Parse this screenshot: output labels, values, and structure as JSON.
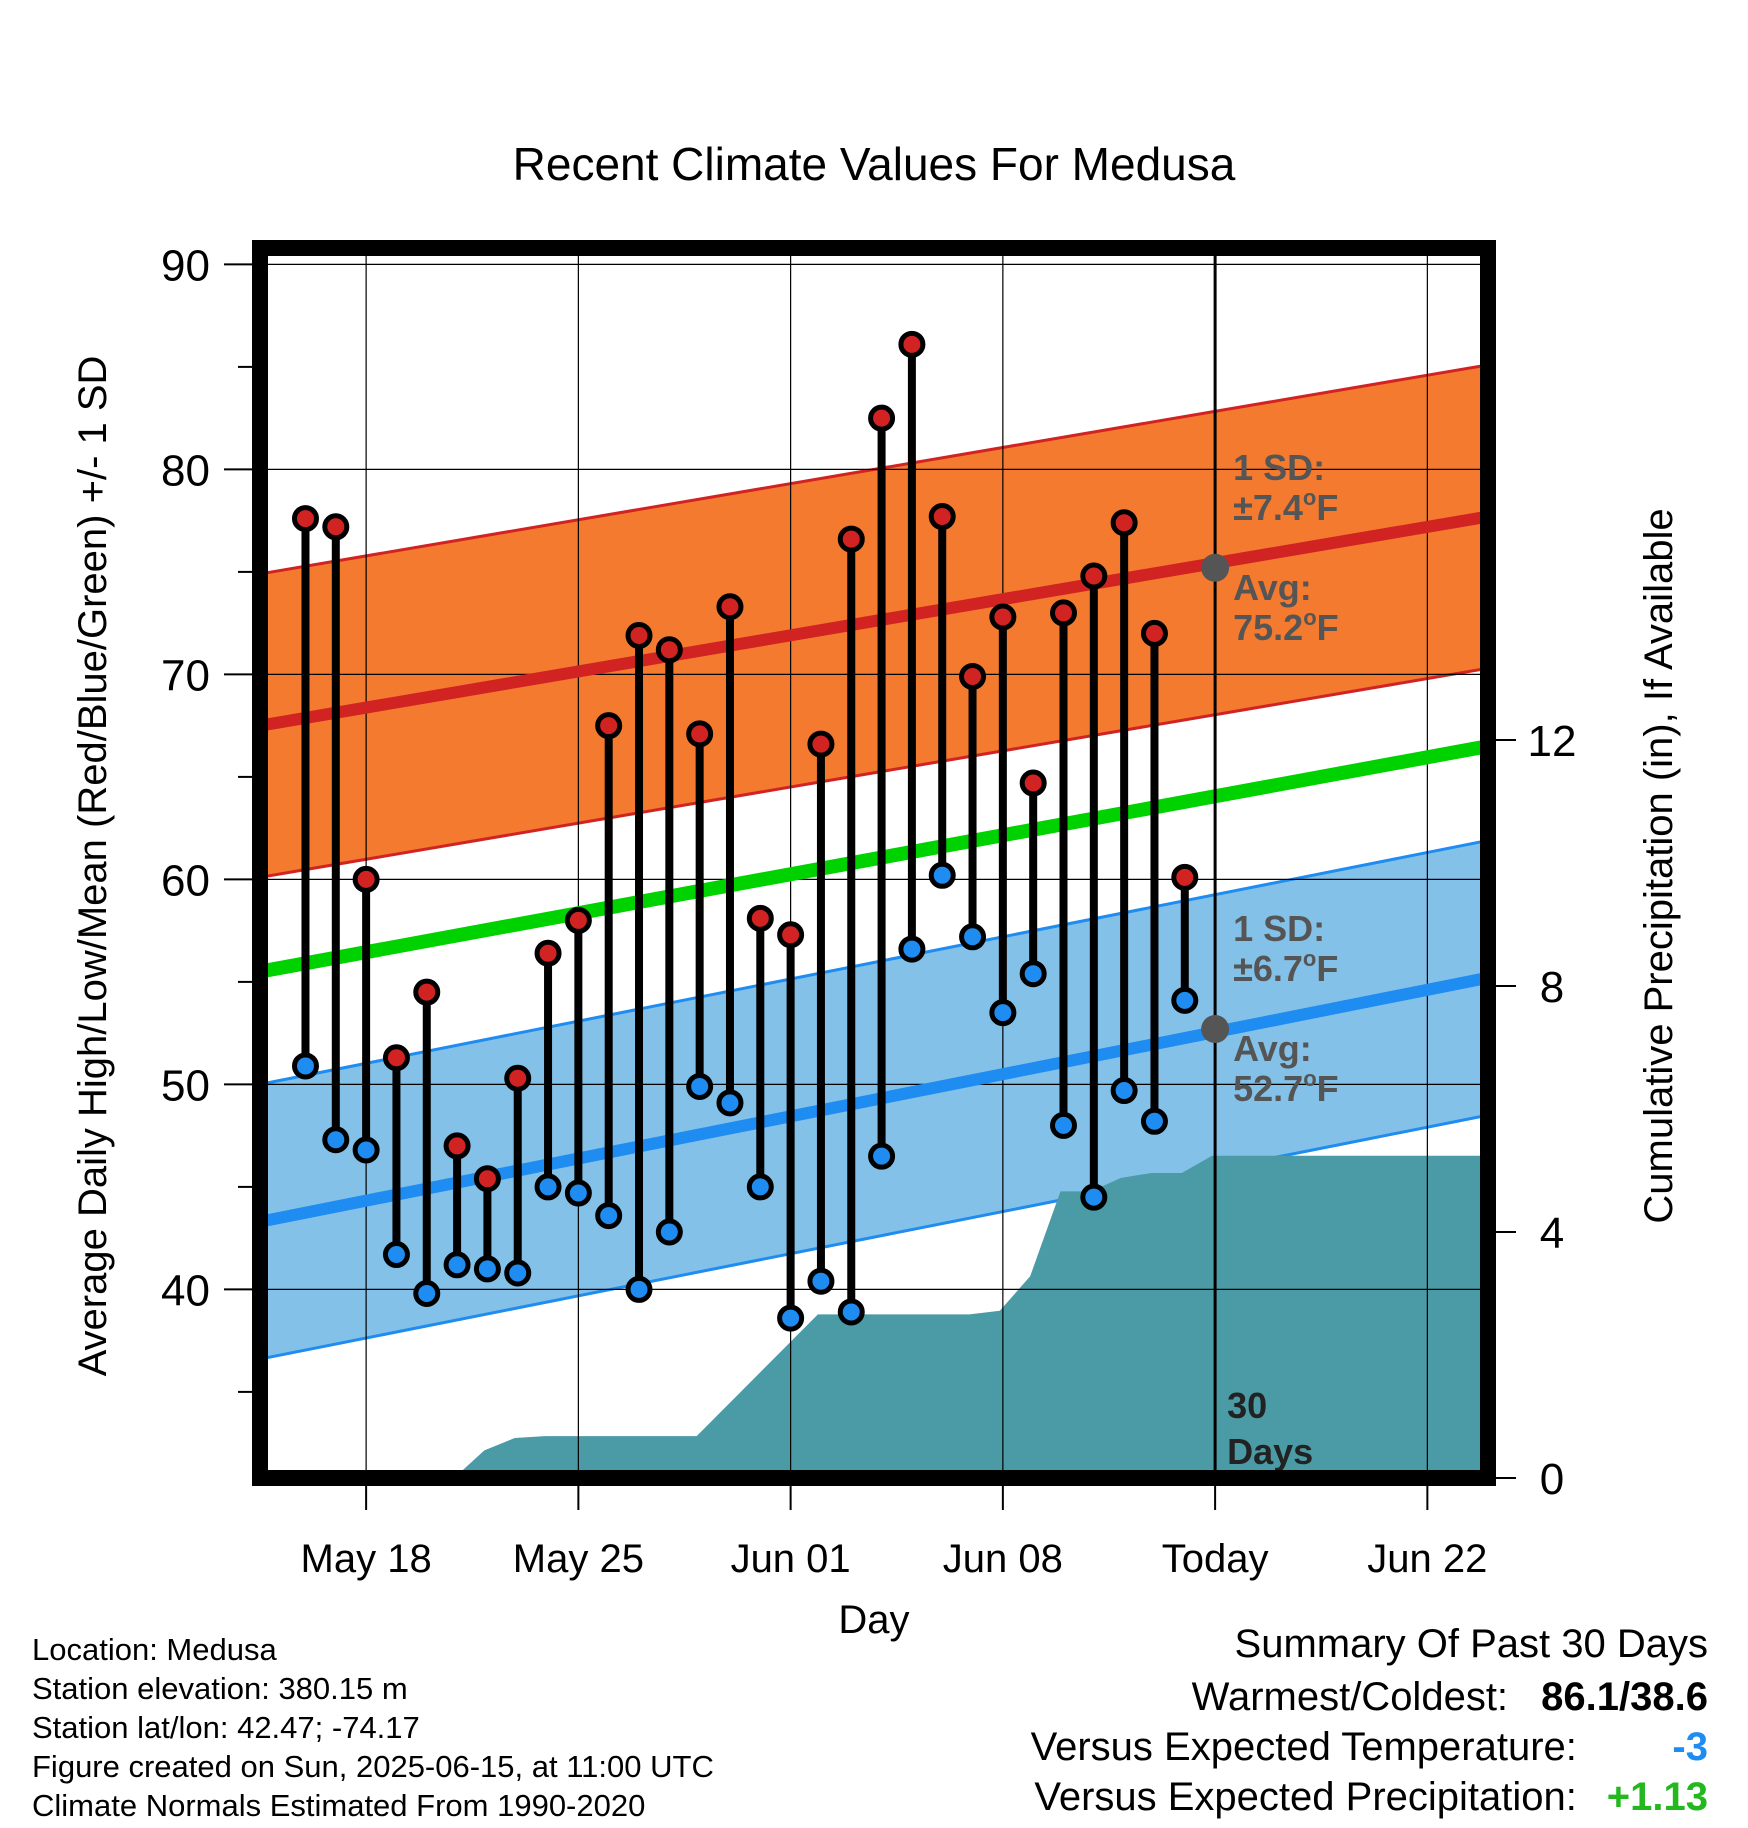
{
  "chart_data": {
    "type": "line",
    "title": "Recent Climate Values For Medusa",
    "xlabel": "Day",
    "ylabel": "Average Daily High/Low/Mean (Red/Blue/Green) +/- 1 SD",
    "ylabel_right": "Cumulative Precipitation (in), If Available",
    "x_day_range": [
      -3.5,
      37.0
    ],
    "x_tick_days": [
      0,
      7,
      14,
      21,
      28,
      35
    ],
    "x_tick_labels": [
      "May 18",
      "May 25",
      "Jun 01",
      "Jun 08",
      "Today",
      "Jun 22"
    ],
    "ylim": [
      30.8,
      90.8
    ],
    "y_ticks": [
      40,
      50,
      60,
      70,
      80,
      90
    ],
    "y2lim": [
      0,
      20
    ],
    "y2_ticks": [
      0,
      4,
      8,
      12
    ],
    "grid": true,
    "today_day": 28,
    "today_label": "30 Days",
    "normal_high": {
      "start": 67.5,
      "end": 77.7,
      "sd": 7.4
    },
    "normal_low": {
      "start": 43.3,
      "end": 55.2,
      "sd": 6.7
    },
    "normal_mean": {
      "start": 55.5,
      "end": 66.5
    },
    "highs": [
      77.6,
      77.2,
      60.0,
      51.3,
      54.5,
      47.0,
      45.4,
      50.3,
      56.4,
      58.0,
      67.5,
      71.9,
      71.2,
      67.1,
      73.3,
      58.1,
      57.3,
      66.6,
      76.6,
      82.5,
      86.1,
      77.7,
      69.9,
      72.8,
      64.7,
      73.0,
      74.8,
      77.4,
      72.0,
      60.1
    ],
    "lows": [
      50.9,
      47.3,
      46.8,
      41.7,
      39.8,
      41.2,
      41.0,
      40.8,
      45.0,
      44.7,
      43.6,
      40.0,
      42.8,
      49.9,
      49.1,
      45.0,
      38.6,
      40.4,
      38.9,
      46.5,
      56.6,
      60.2,
      57.2,
      53.5,
      55.4,
      48.0,
      44.5,
      49.7,
      48.2,
      54.1
    ],
    "precip_days": [
      -2.3,
      2.9,
      3.9,
      4.9,
      5.9,
      9.9,
      10.9,
      14.9,
      15.9,
      16.9,
      17.9,
      18.9,
      19.9,
      20.9,
      21.9,
      22.9,
      23.9,
      24.9,
      25.9,
      26.9,
      27.9,
      37.0
    ],
    "precip_cum": [
      0.0,
      0.0,
      0.45,
      0.65,
      0.68,
      0.68,
      0.68,
      2.66,
      2.66,
      2.66,
      2.66,
      2.66,
      2.66,
      2.72,
      3.28,
      4.66,
      4.66,
      4.88,
      4.96,
      4.96,
      5.24,
      5.24
    ],
    "annotations": {
      "high_sd": "±7.4°F",
      "high_avg": "75.2°F",
      "low_sd": "±6.7°F",
      "low_avg": "52.7°F",
      "sd_prefix": "1 SD:",
      "avg_prefix": "Avg:"
    }
  },
  "footer": {
    "location": "Location: Medusa",
    "elevation": "Station elevation: 380.15 m",
    "latlon": "Station lat/lon: 42.47; -74.17",
    "created": "Figure created on Sun, 2025-06-15, at 11:00 UTC",
    "normals": "Climate Normals Estimated From 1990-2020"
  },
  "summary": {
    "title": "Summary Of Past 30 Days",
    "warm_label": "Warmest/Coldest:",
    "warm_value": "86.1/38.6",
    "temp_label": "Versus Expected Temperature:",
    "temp_value": "-3",
    "precip_label": "Versus Expected Precipitation:",
    "precip_value": "+1.13"
  },
  "colors": {
    "high_band": "#f47a30",
    "high_line": "#d22323",
    "low_band": "#84c1e8",
    "low_line": "#1e8cf0",
    "mean_line": "#00d200",
    "precip": "#4a9ba6",
    "high_dot": "#d22323",
    "low_dot": "#1e8cf0",
    "annotation": "#555555",
    "temp_value": "#1e8cf0",
    "precip_value": "#22b81e"
  }
}
